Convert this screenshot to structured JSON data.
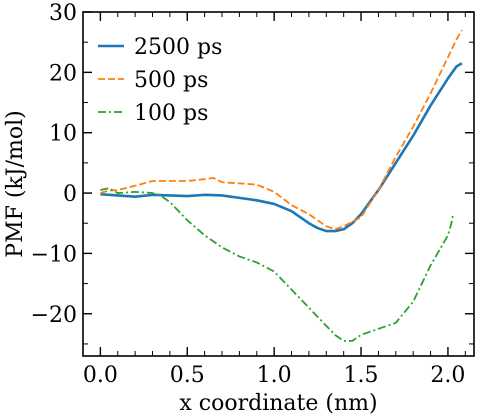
{
  "chart_data": {
    "type": "line",
    "title": "",
    "xlabel": "x coordinate (nm)",
    "ylabel": "PMF (kJ/mol)",
    "xlim": [
      -0.1,
      2.15
    ],
    "ylim": [
      -27,
      30
    ],
    "xticks": [
      0.0,
      0.5,
      1.0,
      1.5,
      2.0
    ],
    "xtick_labels": [
      "0.0",
      "0.5",
      "1.0",
      "1.5",
      "2.0"
    ],
    "yticks": [
      -20,
      -10,
      0,
      10,
      20,
      30
    ],
    "ytick_labels": [
      "−20",
      "−10",
      "0",
      "10",
      "20",
      "30"
    ],
    "grid": false,
    "legend_position": "top-left",
    "series": [
      {
        "name": "2500 ps",
        "color": "#1f77b4",
        "style": "solid",
        "x": [
          0.0,
          0.1,
          0.2,
          0.3,
          0.4,
          0.5,
          0.6,
          0.7,
          0.8,
          0.9,
          1.0,
          1.1,
          1.2,
          1.25,
          1.3,
          1.35,
          1.4,
          1.45,
          1.5,
          1.6,
          1.7,
          1.8,
          1.9,
          2.0,
          2.05,
          2.08
        ],
        "y": [
          -0.2,
          -0.4,
          -0.6,
          -0.3,
          -0.4,
          -0.5,
          -0.3,
          -0.4,
          -0.8,
          -1.2,
          -1.8,
          -3.0,
          -5.0,
          -5.8,
          -6.3,
          -6.3,
          -6.0,
          -5.0,
          -3.5,
          0.5,
          5.0,
          9.5,
          14.5,
          19.0,
          21.0,
          21.5
        ]
      },
      {
        "name": "500 ps",
        "color": "#ff7f0e",
        "style": "dashed",
        "x": [
          0.0,
          0.05,
          0.1,
          0.2,
          0.3,
          0.4,
          0.5,
          0.6,
          0.65,
          0.7,
          0.8,
          0.9,
          1.0,
          1.1,
          1.2,
          1.3,
          1.35,
          1.4,
          1.5,
          1.6,
          1.7,
          1.8,
          1.9,
          2.0,
          2.05,
          2.08
        ],
        "y": [
          0.0,
          0.4,
          0.5,
          1.2,
          2.0,
          2.0,
          2.0,
          2.3,
          2.5,
          1.8,
          1.6,
          1.4,
          0.2,
          -2.0,
          -3.5,
          -5.5,
          -6.0,
          -5.5,
          -4.0,
          0.5,
          6.0,
          11.0,
          16.5,
          22.5,
          25.5,
          27.0
        ]
      },
      {
        "name": "100 ps",
        "color": "#2ca02c",
        "style": "dashdot",
        "x": [
          0.0,
          0.05,
          0.1,
          0.2,
          0.3,
          0.35,
          0.4,
          0.45,
          0.5,
          0.6,
          0.7,
          0.8,
          0.9,
          1.0,
          1.1,
          1.2,
          1.3,
          1.35,
          1.4,
          1.45,
          1.5,
          1.6,
          1.7,
          1.8,
          1.9,
          2.0,
          2.02,
          2.03
        ],
        "y": [
          0.5,
          0.8,
          0.0,
          0.2,
          0.0,
          -0.5,
          -1.5,
          -3.0,
          -4.5,
          -7.0,
          -9.0,
          -10.5,
          -11.5,
          -13.0,
          -16.0,
          -19.0,
          -22.0,
          -23.5,
          -24.5,
          -24.5,
          -23.5,
          -22.5,
          -21.5,
          -18.0,
          -12.0,
          -7.0,
          -5.0,
          -3.5
        ]
      }
    ]
  }
}
